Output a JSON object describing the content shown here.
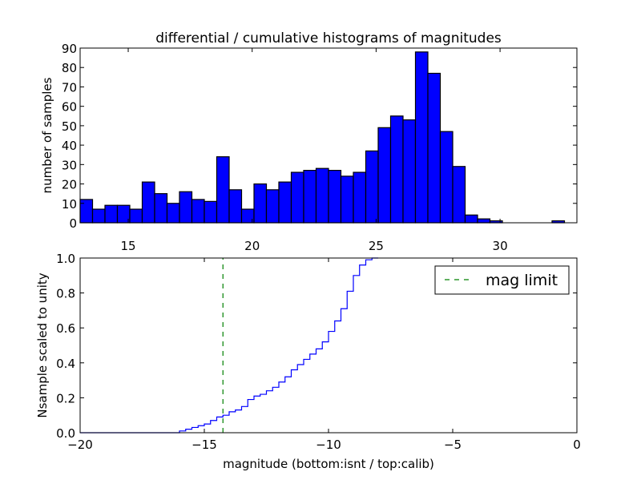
{
  "chart_data": [
    {
      "type": "bar",
      "title": "differential / cumulative histograms of magnitudes",
      "xlabel": "",
      "ylabel": "number of samples",
      "xlim": [
        13.06,
        33.1
      ],
      "ylim": [
        0,
        90
      ],
      "bin_start": 13.06,
      "bin_width": 0.501,
      "xticks": [
        15,
        20,
        25,
        30
      ],
      "yticks": [
        0,
        10,
        20,
        30,
        40,
        50,
        60,
        70,
        80,
        90
      ],
      "values": [
        12,
        7,
        9,
        9,
        7,
        21,
        15,
        10,
        16,
        12,
        11,
        34,
        17,
        7,
        20,
        17,
        21,
        26,
        27,
        28,
        27,
        24,
        26,
        37,
        49,
        55,
        53,
        88,
        77,
        47,
        29,
        4,
        2,
        1,
        0,
        0,
        0,
        0,
        1,
        0
      ],
      "color": "#0000ff"
    },
    {
      "type": "line",
      "title": "",
      "xlabel": "magnitude (bottom:isnt / top:calib)",
      "ylabel": "Nsample scaled to unity",
      "xlim": [
        -20,
        0
      ],
      "ylim": [
        0,
        1
      ],
      "xticks": [
        -20,
        -15,
        -10,
        -5,
        0
      ],
      "xtick_labels": [
        "−20",
        "−15",
        "−10",
        "−5",
        "0"
      ],
      "yticks": [
        0,
        0.2,
        0.4,
        0.6,
        0.8,
        1.0
      ],
      "ytick_labels": [
        "0.0",
        "0.2",
        "0.4",
        "0.6",
        "0.8",
        "1.0"
      ],
      "series": [
        {
          "name": "cumulative",
          "color": "#0000ff",
          "step_start": -16.0,
          "step_width": 0.25,
          "values": [
            0.01,
            0.02,
            0.03,
            0.04,
            0.05,
            0.07,
            0.09,
            0.1,
            0.12,
            0.13,
            0.15,
            0.19,
            0.21,
            0.22,
            0.24,
            0.26,
            0.29,
            0.32,
            0.36,
            0.39,
            0.42,
            0.45,
            0.48,
            0.52,
            0.58,
            0.64,
            0.71,
            0.81,
            0.9,
            0.96,
            0.99,
            1.0
          ]
        }
      ],
      "vline": {
        "name": "mag limit",
        "x": -14.25,
        "color": "#008000",
        "style": "dashed"
      },
      "legend": {
        "entries": [
          "mag limit"
        ],
        "placement": "top-right"
      }
    }
  ]
}
